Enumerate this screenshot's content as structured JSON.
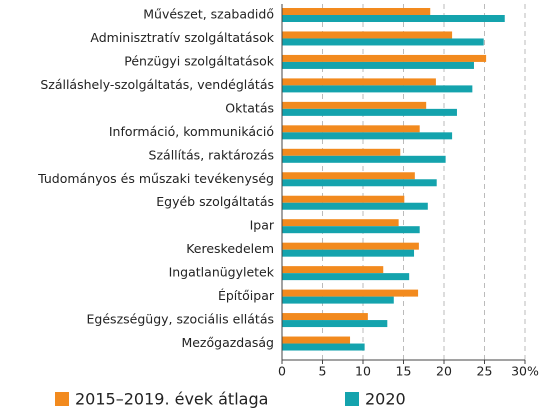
{
  "chart_data": {
    "type": "bar",
    "orientation": "horizontal",
    "categories": [
      "Művészet, szabadidő",
      "Adminisztratív szolgáltatások",
      "Pénzügyi szolgáltatások",
      "Szálláshely-szolgáltatás, vendéglátás",
      "Oktatás",
      "Információ, kommunikáció",
      "Szállítás, raktározás",
      "Tudományos és műszaki tevékenység",
      "Egyéb szolgáltatás",
      "Ipar",
      "Kereskedelem",
      "Ingatlanügyletek",
      "Építőipar",
      "Egészségügy, szociális ellátás",
      "Mezőgazdaság"
    ],
    "series": [
      {
        "name": "2015–2019. évek átlaga",
        "color": "#f28a1e",
        "values": [
          18.3,
          21,
          25.2,
          19,
          17.8,
          17,
          14.6,
          16.4,
          15.1,
          14.4,
          16.9,
          12.5,
          16.8,
          10.6,
          8.4
        ]
      },
      {
        "name": "2020",
        "color": "#14a3ad",
        "values": [
          27.5,
          24.9,
          23.7,
          23.5,
          21.6,
          21,
          20.2,
          19.1,
          18,
          17,
          16.3,
          15.7,
          13.8,
          13,
          10.2
        ]
      }
    ],
    "xlim": [
      0,
      30
    ],
    "xticks": [
      0,
      5,
      10,
      15,
      20,
      25,
      {
        "value": 30,
        "label": "30%"
      }
    ],
    "grid": true
  }
}
